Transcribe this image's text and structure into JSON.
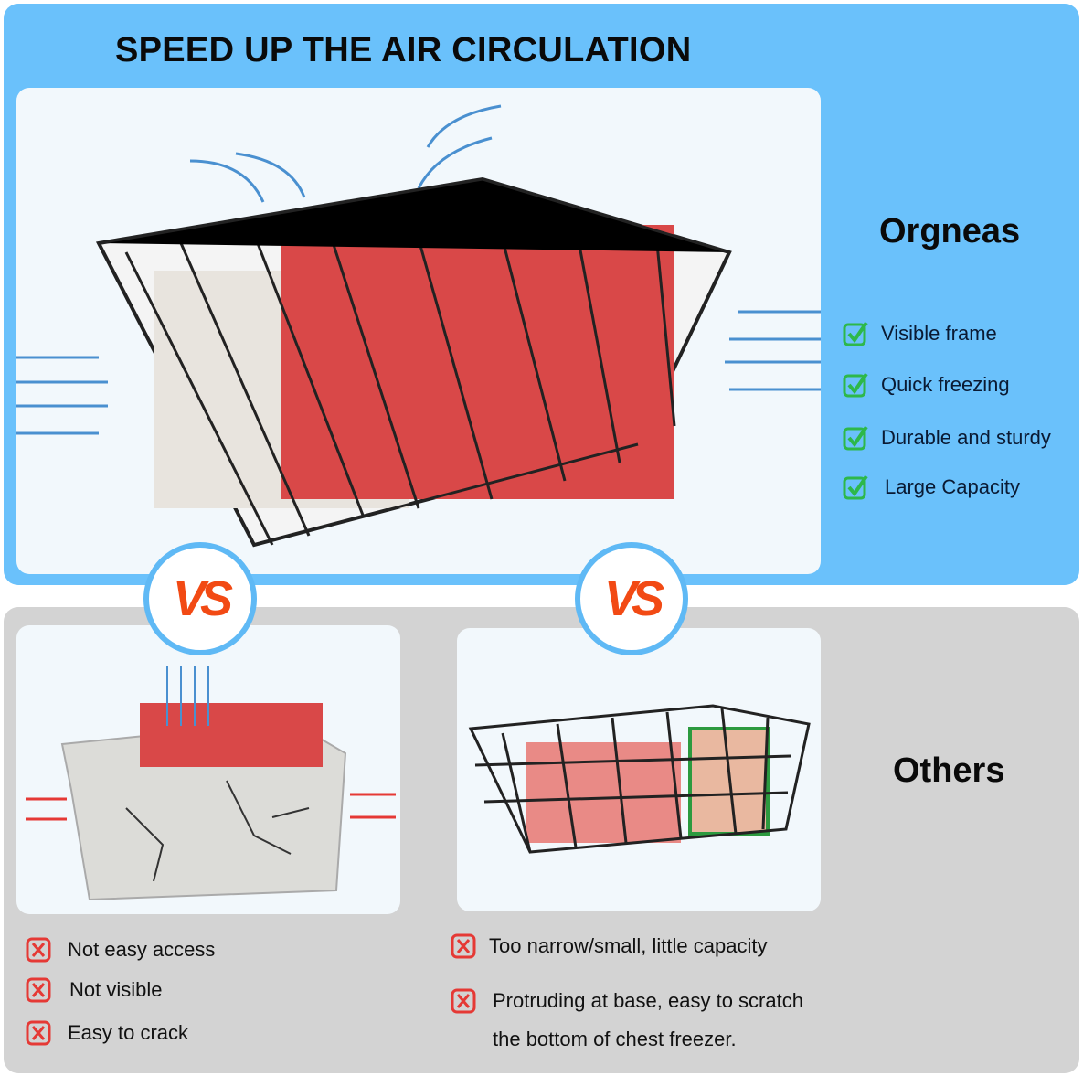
{
  "header": {
    "title": "SPEED UP THE AIR CIRCULATION"
  },
  "orgneas": {
    "brand": "Orgneas",
    "features": [
      "Visible frame",
      "Quick freezing",
      "Durable and sturdy",
      "Large Capacity"
    ],
    "icon": "green-checkbox-icon",
    "accent": "#2db84a"
  },
  "vs_label": "VS",
  "others": {
    "brand": "Others",
    "cons_left": [
      "Not easy access",
      "Not visible",
      "Easy to crack"
    ],
    "cons_right": [
      "Too narrow/small, little capacity",
      "Protruding at base, easy to scratch",
      "the bottom of chest freezer."
    ],
    "icon": "red-x-box-icon",
    "accent": "#e53935"
  },
  "colors": {
    "top_panel": "#6ac1fb",
    "bottom_panel": "#d3d3d3",
    "vs_ring": "#5fb9f5"
  }
}
